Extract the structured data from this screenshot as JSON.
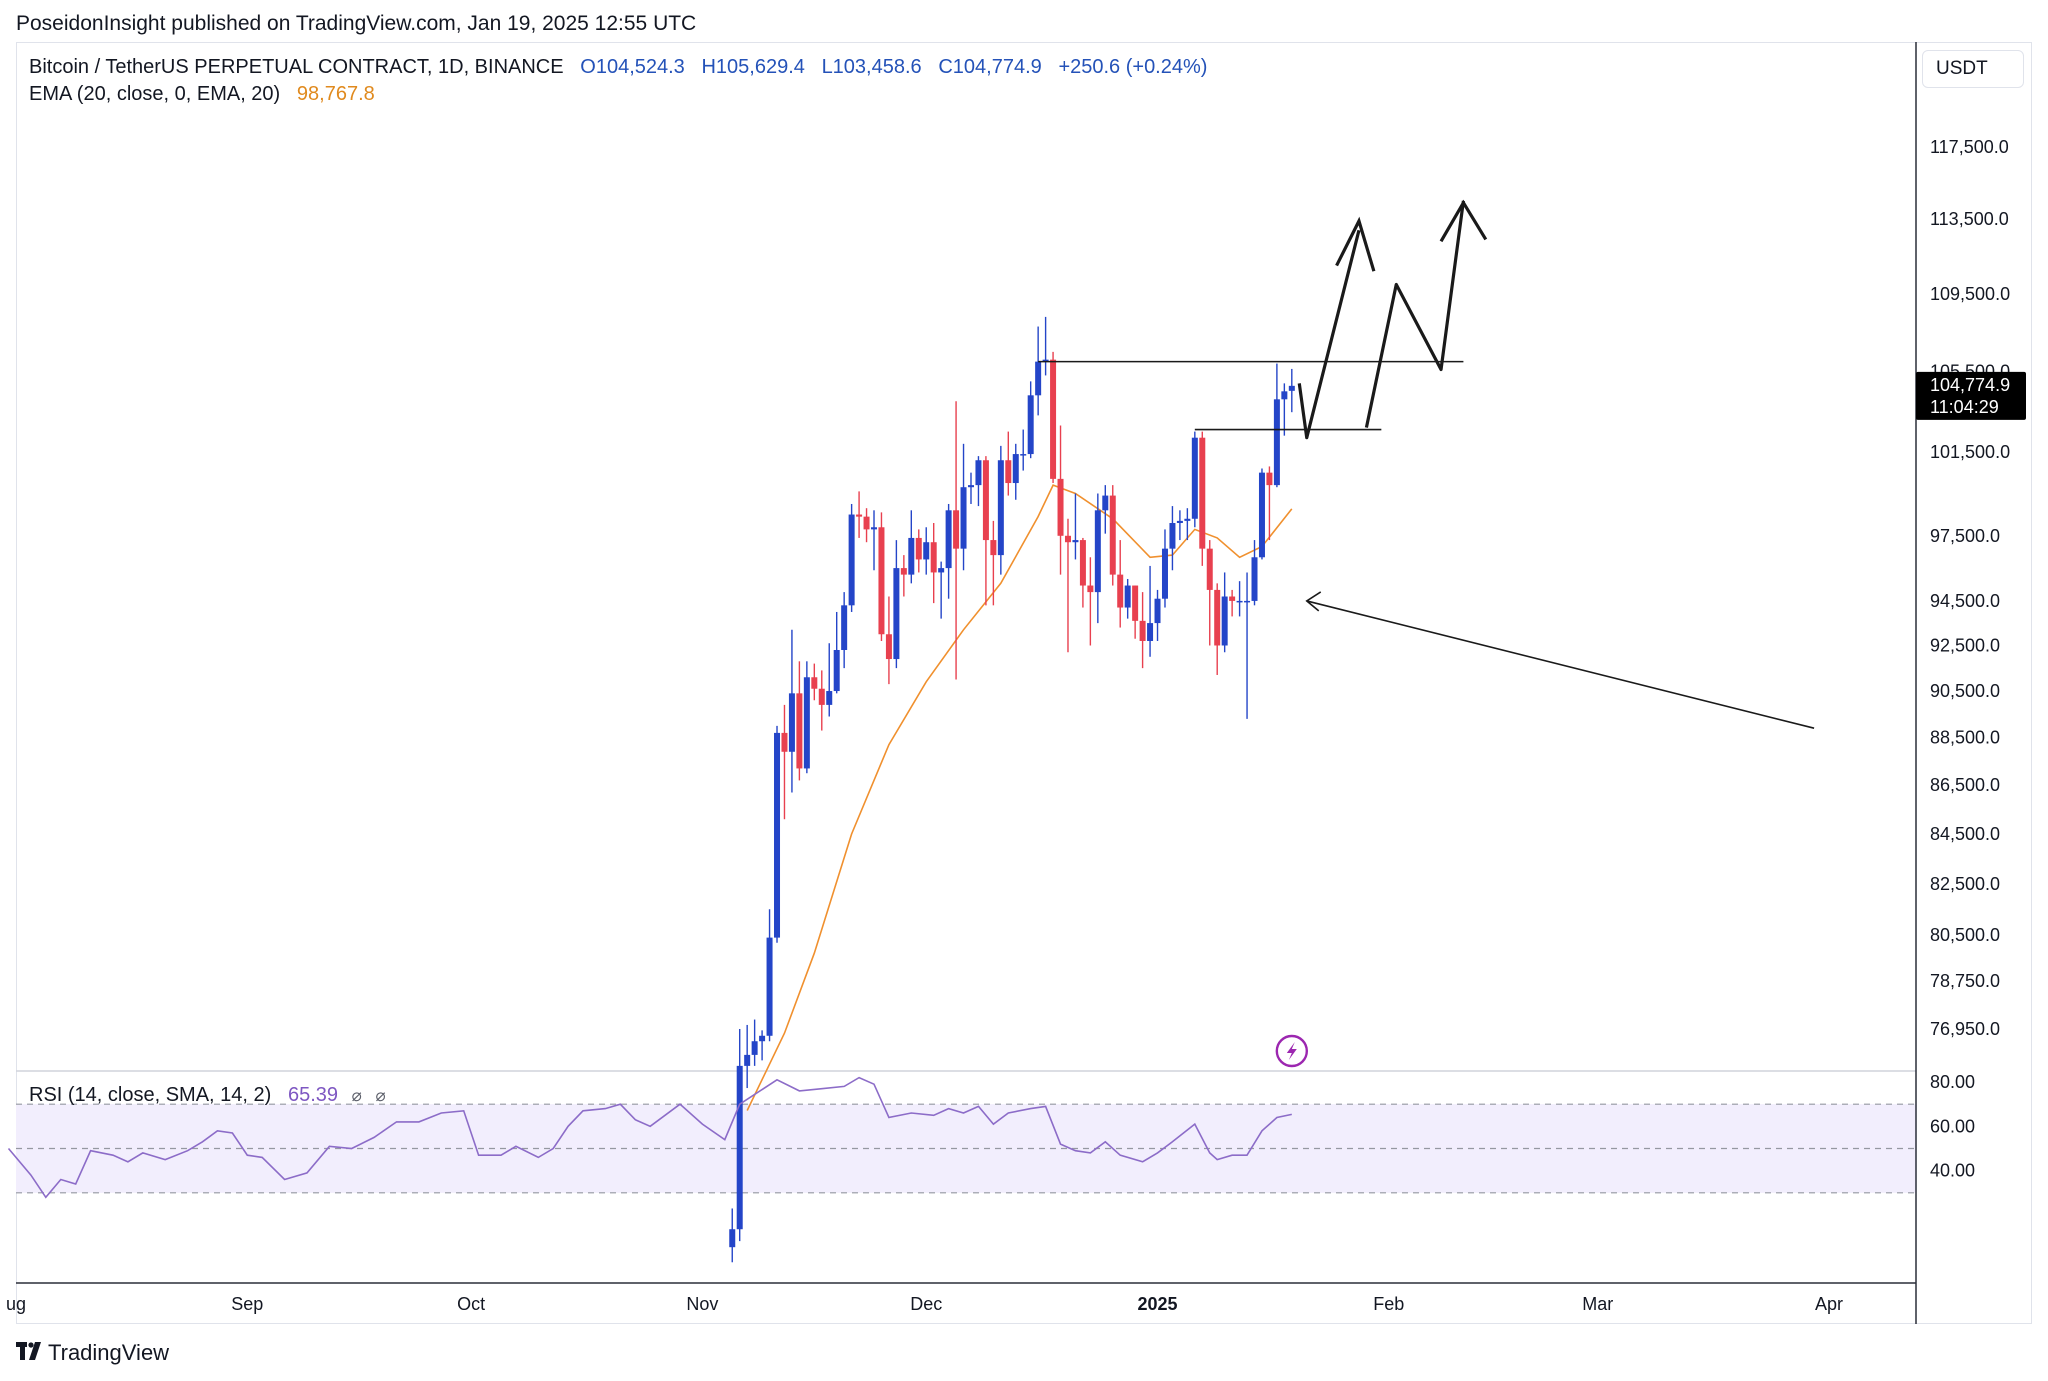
{
  "header": {
    "publisher": "PoseidonInsight published on TradingView.com, Jan 19, 2025 12:55 UTC"
  },
  "legend": {
    "symbol": "Bitcoin / TetherUS PERPETUAL CONTRACT, 1D, BINANCE",
    "open": "O104,524.3",
    "high": "H105,629.4",
    "low": "L103,458.6",
    "close": "C104,774.9",
    "change": "+250.6 (+0.24%)",
    "ema_label": "EMA (20, close, 0, EMA, 20)",
    "ema_value": "98,767.8",
    "rsi_label": "RSI (14, close, SMA, 14, 2)",
    "rsi_value": "65.39",
    "rsi_icon1": "⌀",
    "rsi_icon2": "⌀"
  },
  "toolbar": {
    "currency": "USDT"
  },
  "brand": {
    "name": "TradingView"
  },
  "colors": {
    "up": "#2445c8",
    "down": "#e8404f",
    "ema": "#f0902e",
    "rsi": "#8c6cc8",
    "rsi_band": "#f2eefd",
    "drawing": "#1a1a1a",
    "price_tag": "#000000"
  },
  "chart_data": {
    "type": "candlestick",
    "price_axis": {
      "ticks": [
        {
          "v": 117500,
          "label": "117,500.0"
        },
        {
          "v": 113500,
          "label": "113,500.0"
        },
        {
          "v": 109500,
          "label": "109,500.0"
        },
        {
          "v": 105500,
          "label": "105,500.0"
        },
        {
          "v": 101500,
          "label": "101,500.0"
        },
        {
          "v": 97500,
          "label": "97,500.0"
        },
        {
          "v": 94500,
          "label": "94,500.0"
        },
        {
          "v": 92500,
          "label": "92,500.0"
        },
        {
          "v": 90500,
          "label": "90,500.0"
        },
        {
          "v": 88500,
          "label": "88,500.0"
        },
        {
          "v": 86500,
          "label": "86,500.0"
        },
        {
          "v": 84500,
          "label": "84,500.0"
        },
        {
          "v": 82500,
          "label": "82,500.0"
        },
        {
          "v": 80500,
          "label": "80,500.0"
        },
        {
          "v": 78750,
          "label": "78,750.0"
        },
        {
          "v": 76950,
          "label": "76,950.0"
        }
      ],
      "scale": "log"
    },
    "last_price": {
      "value": 104774.9,
      "label": "104,774.9",
      "countdown": "11:04:29"
    },
    "time_axis": [
      {
        "label": "ug",
        "date": "2024-08-01",
        "bold": false
      },
      {
        "label": "Sep",
        "date": "2024-09-01",
        "bold": false
      },
      {
        "label": "Oct",
        "date": "2024-10-01",
        "bold": false
      },
      {
        "label": "Nov",
        "date": "2024-11-01",
        "bold": false
      },
      {
        "label": "Dec",
        "date": "2024-12-01",
        "bold": false
      },
      {
        "label": "2025",
        "date": "2025-01-01",
        "bold": true
      },
      {
        "label": "Feb",
        "date": "2025-02-01",
        "bold": false
      },
      {
        "label": "Mar",
        "date": "2025-03-01",
        "bold": false
      },
      {
        "label": "Apr",
        "date": "2025-04-01",
        "bold": false
      }
    ],
    "candles": [
      {
        "d": "2024-11-05",
        "o": 69300,
        "h": 70600,
        "l": 68800,
        "c": 69900
      },
      {
        "d": "2024-11-06",
        "o": 69900,
        "h": 76950,
        "l": 69500,
        "c": 75600
      },
      {
        "d": "2024-11-07",
        "o": 75600,
        "h": 77100,
        "l": 74800,
        "c": 76000
      },
      {
        "d": "2024-11-08",
        "o": 76000,
        "h": 77300,
        "l": 75600,
        "c": 76500
      },
      {
        "d": "2024-11-09",
        "o": 76500,
        "h": 76900,
        "l": 75800,
        "c": 76700
      },
      {
        "d": "2024-11-10",
        "o": 76700,
        "h": 81500,
        "l": 76500,
        "c": 80400
      },
      {
        "d": "2024-11-11",
        "o": 80400,
        "h": 89000,
        "l": 80200,
        "c": 88700
      },
      {
        "d": "2024-11-12",
        "o": 88700,
        "h": 89900,
        "l": 85100,
        "c": 87900
      },
      {
        "d": "2024-11-13",
        "o": 87900,
        "h": 93200,
        "l": 86200,
        "c": 90400
      },
      {
        "d": "2024-11-14",
        "o": 90400,
        "h": 91800,
        "l": 86700,
        "c": 87200
      },
      {
        "d": "2024-11-15",
        "o": 87200,
        "h": 91800,
        "l": 87000,
        "c": 91100
      },
      {
        "d": "2024-11-16",
        "o": 91100,
        "h": 91700,
        "l": 90100,
        "c": 90600
      },
      {
        "d": "2024-11-17",
        "o": 90600,
        "h": 91400,
        "l": 88800,
        "c": 89900
      },
      {
        "d": "2024-11-18",
        "o": 89900,
        "h": 92600,
        "l": 89400,
        "c": 90500
      },
      {
        "d": "2024-11-19",
        "o": 90500,
        "h": 94000,
        "l": 90400,
        "c": 92300
      },
      {
        "d": "2024-11-20",
        "o": 92300,
        "h": 94900,
        "l": 91500,
        "c": 94300
      },
      {
        "d": "2024-11-21",
        "o": 94300,
        "h": 99000,
        "l": 94000,
        "c": 98500
      },
      {
        "d": "2024-11-22",
        "o": 98500,
        "h": 99600,
        "l": 97400,
        "c": 98400
      },
      {
        "d": "2024-11-23",
        "o": 98400,
        "h": 98800,
        "l": 97200,
        "c": 97800
      },
      {
        "d": "2024-11-24",
        "o": 97800,
        "h": 98700,
        "l": 95900,
        "c": 97900
      },
      {
        "d": "2024-11-25",
        "o": 97900,
        "h": 98600,
        "l": 92700,
        "c": 93000
      },
      {
        "d": "2024-11-26",
        "o": 93000,
        "h": 94700,
        "l": 90800,
        "c": 91900
      },
      {
        "d": "2024-11-27",
        "o": 91900,
        "h": 97300,
        "l": 91500,
        "c": 96000
      },
      {
        "d": "2024-11-28",
        "o": 96000,
        "h": 96600,
        "l": 94700,
        "c": 95700
      },
      {
        "d": "2024-11-29",
        "o": 95700,
        "h": 98700,
        "l": 95300,
        "c": 97400
      },
      {
        "d": "2024-11-30",
        "o": 97400,
        "h": 97800,
        "l": 95800,
        "c": 96400
      },
      {
        "d": "2024-12-01",
        "o": 96400,
        "h": 97900,
        "l": 95700,
        "c": 97200
      },
      {
        "d": "2024-12-02",
        "o": 97200,
        "h": 98100,
        "l": 94400,
        "c": 95800
      },
      {
        "d": "2024-12-03",
        "o": 95800,
        "h": 96300,
        "l": 93700,
        "c": 96000
      },
      {
        "d": "2024-12-04",
        "o": 96000,
        "h": 99000,
        "l": 94600,
        "c": 98700
      },
      {
        "d": "2024-12-05",
        "o": 98700,
        "h": 104000,
        "l": 91000,
        "c": 96900
      },
      {
        "d": "2024-12-06",
        "o": 96900,
        "h": 101900,
        "l": 95900,
        "c": 99800
      },
      {
        "d": "2024-12-07",
        "o": 99800,
        "h": 100500,
        "l": 99000,
        "c": 99900
      },
      {
        "d": "2024-12-08",
        "o": 99900,
        "h": 101300,
        "l": 98900,
        "c": 101100
      },
      {
        "d": "2024-12-09",
        "o": 101100,
        "h": 101300,
        "l": 94300,
        "c": 97300
      },
      {
        "d": "2024-12-10",
        "o": 97300,
        "h": 98200,
        "l": 94300,
        "c": 96600
      },
      {
        "d": "2024-12-11",
        "o": 96600,
        "h": 101800,
        "l": 95700,
        "c": 101100
      },
      {
        "d": "2024-12-12",
        "o": 101100,
        "h": 102500,
        "l": 99400,
        "c": 100000
      },
      {
        "d": "2024-12-13",
        "o": 100000,
        "h": 101900,
        "l": 99200,
        "c": 101400
      },
      {
        "d": "2024-12-14",
        "o": 101400,
        "h": 102600,
        "l": 100600,
        "c": 101400
      },
      {
        "d": "2024-12-15",
        "o": 101400,
        "h": 105000,
        "l": 101200,
        "c": 104300
      },
      {
        "d": "2024-12-16",
        "o": 104300,
        "h": 107800,
        "l": 103300,
        "c": 106000
      },
      {
        "d": "2024-12-17",
        "o": 106000,
        "h": 108300,
        "l": 105300,
        "c": 106100
      },
      {
        "d": "2024-12-18",
        "o": 106100,
        "h": 106500,
        "l": 100000,
        "c": 100200
      },
      {
        "d": "2024-12-19",
        "o": 100200,
        "h": 102800,
        "l": 95700,
        "c": 97500
      },
      {
        "d": "2024-12-20",
        "o": 97500,
        "h": 98300,
        "l": 92200,
        "c": 97200
      },
      {
        "d": "2024-12-21",
        "o": 97200,
        "h": 99500,
        "l": 96400,
        "c": 97300
      },
      {
        "d": "2024-12-22",
        "o": 97300,
        "h": 97400,
        "l": 94200,
        "c": 95200
      },
      {
        "d": "2024-12-23",
        "o": 95200,
        "h": 96500,
        "l": 92500,
        "c": 94900
      },
      {
        "d": "2024-12-24",
        "o": 94900,
        "h": 99500,
        "l": 93500,
        "c": 98700
      },
      {
        "d": "2024-12-25",
        "o": 98700,
        "h": 99900,
        "l": 97600,
        "c": 99400
      },
      {
        "d": "2024-12-26",
        "o": 99400,
        "h": 99900,
        "l": 95200,
        "c": 95700
      },
      {
        "d": "2024-12-27",
        "o": 95700,
        "h": 97300,
        "l": 93300,
        "c": 94200
      },
      {
        "d": "2024-12-28",
        "o": 94200,
        "h": 95500,
        "l": 93700,
        "c": 95200
      },
      {
        "d": "2024-12-29",
        "o": 95200,
        "h": 95200,
        "l": 92800,
        "c": 93600
      },
      {
        "d": "2024-12-30",
        "o": 93600,
        "h": 94900,
        "l": 91500,
        "c": 92700
      },
      {
        "d": "2024-12-31",
        "o": 92700,
        "h": 96100,
        "l": 92000,
        "c": 93500
      },
      {
        "d": "2025-01-01",
        "o": 93500,
        "h": 95000,
        "l": 92700,
        "c": 94600
      },
      {
        "d": "2025-01-02",
        "o": 94600,
        "h": 97800,
        "l": 94200,
        "c": 96900
      },
      {
        "d": "2025-01-03",
        "o": 96900,
        "h": 98900,
        "l": 95900,
        "c": 98100
      },
      {
        "d": "2025-01-04",
        "o": 98100,
        "h": 98700,
        "l": 97300,
        "c": 98200
      },
      {
        "d": "2025-01-05",
        "o": 98200,
        "h": 98800,
        "l": 97300,
        "c": 98300
      },
      {
        "d": "2025-01-06",
        "o": 98300,
        "h": 102500,
        "l": 97900,
        "c": 102200
      },
      {
        "d": "2025-01-07",
        "o": 102200,
        "h": 102500,
        "l": 96100,
        "c": 96900
      },
      {
        "d": "2025-01-08",
        "o": 96900,
        "h": 97300,
        "l": 92500,
        "c": 95000
      },
      {
        "d": "2025-01-09",
        "o": 95000,
        "h": 95300,
        "l": 91200,
        "c": 92500
      },
      {
        "d": "2025-01-10",
        "o": 92500,
        "h": 95800,
        "l": 92200,
        "c": 94700
      },
      {
        "d": "2025-01-11",
        "o": 94700,
        "h": 95000,
        "l": 93800,
        "c": 94500
      },
      {
        "d": "2025-01-12",
        "o": 94500,
        "h": 95400,
        "l": 93800,
        "c": 94500
      },
      {
        "d": "2025-01-13",
        "o": 94500,
        "h": 95800,
        "l": 89300,
        "c": 94500
      },
      {
        "d": "2025-01-14",
        "o": 94500,
        "h": 97300,
        "l": 94300,
        "c": 96500
      },
      {
        "d": "2025-01-15",
        "o": 96500,
        "h": 100700,
        "l": 96400,
        "c": 100500
      },
      {
        "d": "2025-01-16",
        "o": 100500,
        "h": 100800,
        "l": 97300,
        "c": 99900
      },
      {
        "d": "2025-01-17",
        "o": 99900,
        "h": 105900,
        "l": 99800,
        "c": 104100
      },
      {
        "d": "2025-01-18",
        "o": 104100,
        "h": 104900,
        "l": 102300,
        "c": 104500
      },
      {
        "d": "2025-01-19",
        "o": 104524.3,
        "h": 105629.4,
        "l": 103458.6,
        "c": 104774.9
      }
    ],
    "ema": [
      {
        "d": "2024-11-07",
        "v": 74000
      },
      {
        "d": "2024-11-12",
        "v": 76800
      },
      {
        "d": "2024-11-16",
        "v": 79800
      },
      {
        "d": "2024-11-21",
        "v": 84500
      },
      {
        "d": "2024-11-26",
        "v": 88200
      },
      {
        "d": "2024-12-01",
        "v": 90900
      },
      {
        "d": "2024-12-06",
        "v": 93200
      },
      {
        "d": "2024-12-11",
        "v": 95300
      },
      {
        "d": "2024-12-16",
        "v": 98400
      },
      {
        "d": "2024-12-18",
        "v": 99900
      },
      {
        "d": "2024-12-21",
        "v": 99500
      },
      {
        "d": "2024-12-26",
        "v": 98300
      },
      {
        "d": "2024-12-31",
        "v": 96500
      },
      {
        "d": "2025-01-03",
        "v": 96600
      },
      {
        "d": "2025-01-06",
        "v": 97800
      },
      {
        "d": "2025-01-09",
        "v": 97400
      },
      {
        "d": "2025-01-12",
        "v": 96500
      },
      {
        "d": "2025-01-15",
        "v": 97000
      },
      {
        "d": "2025-01-19",
        "v": 98767.8
      }
    ],
    "rsi": {
      "ticks": [
        {
          "v": 80,
          "label": "80.00"
        },
        {
          "v": 60,
          "label": "60.00"
        },
        {
          "v": 40,
          "label": "40.00"
        }
      ],
      "band": [
        30,
        70
      ],
      "mid": 50,
      "points": [
        {
          "d": "2024-07-31",
          "v": 50
        },
        {
          "d": "2024-08-03",
          "v": 38
        },
        {
          "d": "2024-08-05",
          "v": 28
        },
        {
          "d": "2024-08-07",
          "v": 36
        },
        {
          "d": "2024-08-09",
          "v": 34
        },
        {
          "d": "2024-08-11",
          "v": 49
        },
        {
          "d": "2024-08-14",
          "v": 47
        },
        {
          "d": "2024-08-16",
          "v": 44
        },
        {
          "d": "2024-08-18",
          "v": 48
        },
        {
          "d": "2024-08-21",
          "v": 45
        },
        {
          "d": "2024-08-24",
          "v": 49
        },
        {
          "d": "2024-08-26",
          "v": 53
        },
        {
          "d": "2024-08-28",
          "v": 58
        },
        {
          "d": "2024-08-30",
          "v": 57
        },
        {
          "d": "2024-09-01",
          "v": 47
        },
        {
          "d": "2024-09-03",
          "v": 46
        },
        {
          "d": "2024-09-06",
          "v": 36
        },
        {
          "d": "2024-09-09",
          "v": 39
        },
        {
          "d": "2024-09-12",
          "v": 51
        },
        {
          "d": "2024-09-15",
          "v": 50
        },
        {
          "d": "2024-09-18",
          "v": 55
        },
        {
          "d": "2024-09-21",
          "v": 62
        },
        {
          "d": "2024-09-24",
          "v": 62
        },
        {
          "d": "2024-09-27",
          "v": 66
        },
        {
          "d": "2024-09-30",
          "v": 67
        },
        {
          "d": "2024-10-02",
          "v": 47
        },
        {
          "d": "2024-10-05",
          "v": 47
        },
        {
          "d": "2024-10-07",
          "v": 51
        },
        {
          "d": "2024-10-10",
          "v": 46
        },
        {
          "d": "2024-10-12",
          "v": 50
        },
        {
          "d": "2024-10-14",
          "v": 60
        },
        {
          "d": "2024-10-16",
          "v": 67
        },
        {
          "d": "2024-10-19",
          "v": 68
        },
        {
          "d": "2024-10-21",
          "v": 70
        },
        {
          "d": "2024-10-23",
          "v": 63
        },
        {
          "d": "2024-10-25",
          "v": 60
        },
        {
          "d": "2024-10-29",
          "v": 70
        },
        {
          "d": "2024-11-01",
          "v": 61
        },
        {
          "d": "2024-11-04",
          "v": 54
        },
        {
          "d": "2024-11-06",
          "v": 70
        },
        {
          "d": "2024-11-11",
          "v": 81
        },
        {
          "d": "2024-11-14",
          "v": 76
        },
        {
          "d": "2024-11-17",
          "v": 77
        },
        {
          "d": "2024-11-20",
          "v": 78
        },
        {
          "d": "2024-11-22",
          "v": 82
        },
        {
          "d": "2024-11-24",
          "v": 79
        },
        {
          "d": "2024-11-26",
          "v": 64
        },
        {
          "d": "2024-11-29",
          "v": 66
        },
        {
          "d": "2024-12-02",
          "v": 65
        },
        {
          "d": "2024-12-04",
          "v": 68
        },
        {
          "d": "2024-12-06",
          "v": 66
        },
        {
          "d": "2024-12-08",
          "v": 69
        },
        {
          "d": "2024-12-10",
          "v": 61
        },
        {
          "d": "2024-12-12",
          "v": 66
        },
        {
          "d": "2024-12-15",
          "v": 68
        },
        {
          "d": "2024-12-17",
          "v": 69
        },
        {
          "d": "2024-12-19",
          "v": 52
        },
        {
          "d": "2024-12-21",
          "v": 49
        },
        {
          "d": "2024-12-23",
          "v": 48
        },
        {
          "d": "2024-12-25",
          "v": 53
        },
        {
          "d": "2024-12-27",
          "v": 47
        },
        {
          "d": "2024-12-30",
          "v": 44
        },
        {
          "d": "2025-01-01",
          "v": 48
        },
        {
          "d": "2025-01-03",
          "v": 53
        },
        {
          "d": "2025-01-06",
          "v": 61
        },
        {
          "d": "2025-01-08",
          "v": 48
        },
        {
          "d": "2025-01-09",
          "v": 45
        },
        {
          "d": "2025-01-11",
          "v": 47
        },
        {
          "d": "2025-01-13",
          "v": 47
        },
        {
          "d": "2025-01-15",
          "v": 58
        },
        {
          "d": "2025-01-17",
          "v": 64
        },
        {
          "d": "2025-01-19",
          "v": 65.39
        }
      ]
    }
  }
}
